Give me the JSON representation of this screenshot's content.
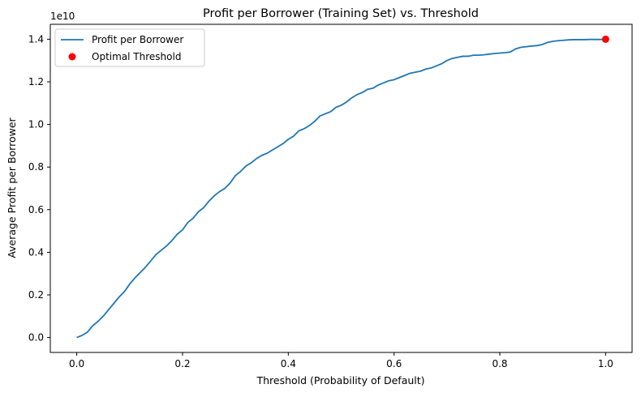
{
  "chart_data": {
    "type": "line",
    "title": "Profit per Borrower (Training Set) vs. Threshold",
    "xlabel": "Threshold (Probability of Default)",
    "ylabel": "Average Profit per Borrower",
    "y_offset_label": "1e10",
    "xlim": [
      -0.05,
      1.05
    ],
    "ylim": [
      -0.07,
      1.47
    ],
    "x_ticks": [
      0.0,
      0.2,
      0.4,
      0.6,
      0.8,
      1.0
    ],
    "x_tick_labels": [
      "0.0",
      "0.2",
      "0.4",
      "0.6",
      "0.8",
      "1.0"
    ],
    "y_ticks": [
      0.0,
      0.2,
      0.4,
      0.6,
      0.8,
      1.0,
      1.2,
      1.4
    ],
    "y_tick_labels": [
      "0.0",
      "0.2",
      "0.4",
      "0.6",
      "0.8",
      "1.0",
      "1.2",
      "1.4"
    ],
    "grid": false,
    "legend_placement": "upper-left",
    "series": [
      {
        "name": "Profit per Borrower",
        "kind": "line",
        "color": "#1f77b4",
        "x": [
          0.0,
          0.01,
          0.02,
          0.03,
          0.04,
          0.05,
          0.06,
          0.07,
          0.08,
          0.09,
          0.1,
          0.11,
          0.12,
          0.13,
          0.14,
          0.15,
          0.16,
          0.17,
          0.18,
          0.19,
          0.2,
          0.21,
          0.22,
          0.23,
          0.24,
          0.25,
          0.26,
          0.27,
          0.28,
          0.29,
          0.3,
          0.31,
          0.32,
          0.33,
          0.34,
          0.35,
          0.36,
          0.37,
          0.38,
          0.39,
          0.4,
          0.41,
          0.42,
          0.43,
          0.44,
          0.45,
          0.46,
          0.47,
          0.48,
          0.49,
          0.5,
          0.51,
          0.52,
          0.53,
          0.54,
          0.55,
          0.56,
          0.57,
          0.58,
          0.59,
          0.6,
          0.61,
          0.62,
          0.63,
          0.64,
          0.65,
          0.66,
          0.67,
          0.68,
          0.69,
          0.7,
          0.71,
          0.72,
          0.73,
          0.74,
          0.75,
          0.76,
          0.77,
          0.78,
          0.79,
          0.8,
          0.81,
          0.82,
          0.83,
          0.84,
          0.85,
          0.86,
          0.87,
          0.88,
          0.89,
          0.9,
          0.91,
          0.92,
          0.93,
          0.94,
          0.95,
          0.96,
          0.97,
          0.98,
          0.99,
          1.0
        ],
        "y": [
          0.0,
          0.01,
          0.025,
          0.055,
          0.075,
          0.1,
          0.13,
          0.16,
          0.19,
          0.215,
          0.25,
          0.28,
          0.305,
          0.33,
          0.36,
          0.39,
          0.41,
          0.43,
          0.455,
          0.485,
          0.505,
          0.54,
          0.56,
          0.59,
          0.61,
          0.64,
          0.665,
          0.685,
          0.7,
          0.725,
          0.76,
          0.78,
          0.805,
          0.82,
          0.84,
          0.855,
          0.865,
          0.88,
          0.895,
          0.91,
          0.93,
          0.945,
          0.97,
          0.98,
          0.995,
          1.015,
          1.04,
          1.05,
          1.06,
          1.08,
          1.09,
          1.105,
          1.125,
          1.14,
          1.15,
          1.165,
          1.17,
          1.185,
          1.195,
          1.205,
          1.21,
          1.22,
          1.23,
          1.24,
          1.245,
          1.25,
          1.26,
          1.265,
          1.275,
          1.285,
          1.3,
          1.31,
          1.315,
          1.32,
          1.32,
          1.325,
          1.325,
          1.327,
          1.33,
          1.333,
          1.335,
          1.337,
          1.34,
          1.355,
          1.362,
          1.365,
          1.368,
          1.37,
          1.375,
          1.385,
          1.39,
          1.393,
          1.395,
          1.397,
          1.398,
          1.398,
          1.398,
          1.399,
          1.399,
          1.399,
          1.4
        ]
      },
      {
        "name": "Optimal Threshold",
        "kind": "scatter",
        "color": "#ff0000",
        "x": [
          1.0
        ],
        "y": [
          1.4
        ]
      }
    ]
  }
}
